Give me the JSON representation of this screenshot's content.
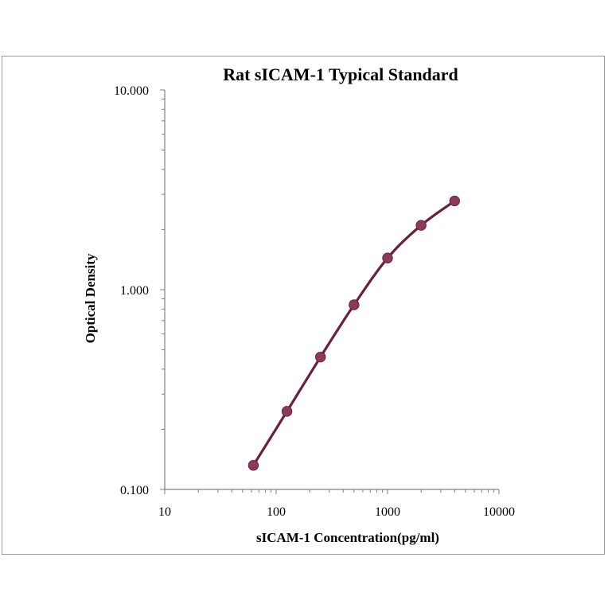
{
  "chart_data": {
    "type": "line",
    "title": "Rat  sICAM-1 Typical Standard",
    "xlabel": "sICAM-1 Concentration(pg/ml)",
    "ylabel": "Optical Density",
    "x_scale": "log",
    "y_scale": "log",
    "xlim": [
      10,
      10000
    ],
    "ylim": [
      0.1,
      10
    ],
    "x_ticks": [
      10,
      100,
      1000,
      10000
    ],
    "x_tick_labels": [
      "10",
      "100",
      "1000",
      "10000"
    ],
    "y_ticks": [
      0.1,
      1,
      10
    ],
    "y_tick_labels": [
      "0.100",
      "1.000",
      "10.000"
    ],
    "grid": false,
    "legend": "none",
    "series": [
      {
        "x": [
          62.5,
          125,
          250,
          500,
          1000,
          2000,
          4000
        ],
        "y": [
          0.132,
          0.246,
          0.46,
          0.84,
          1.44,
          2.1,
          2.78
        ]
      }
    ],
    "colors": {
      "line": "#6b1f3f",
      "marker": "#8c3a5c",
      "axis": "#7f7f7f"
    }
  }
}
